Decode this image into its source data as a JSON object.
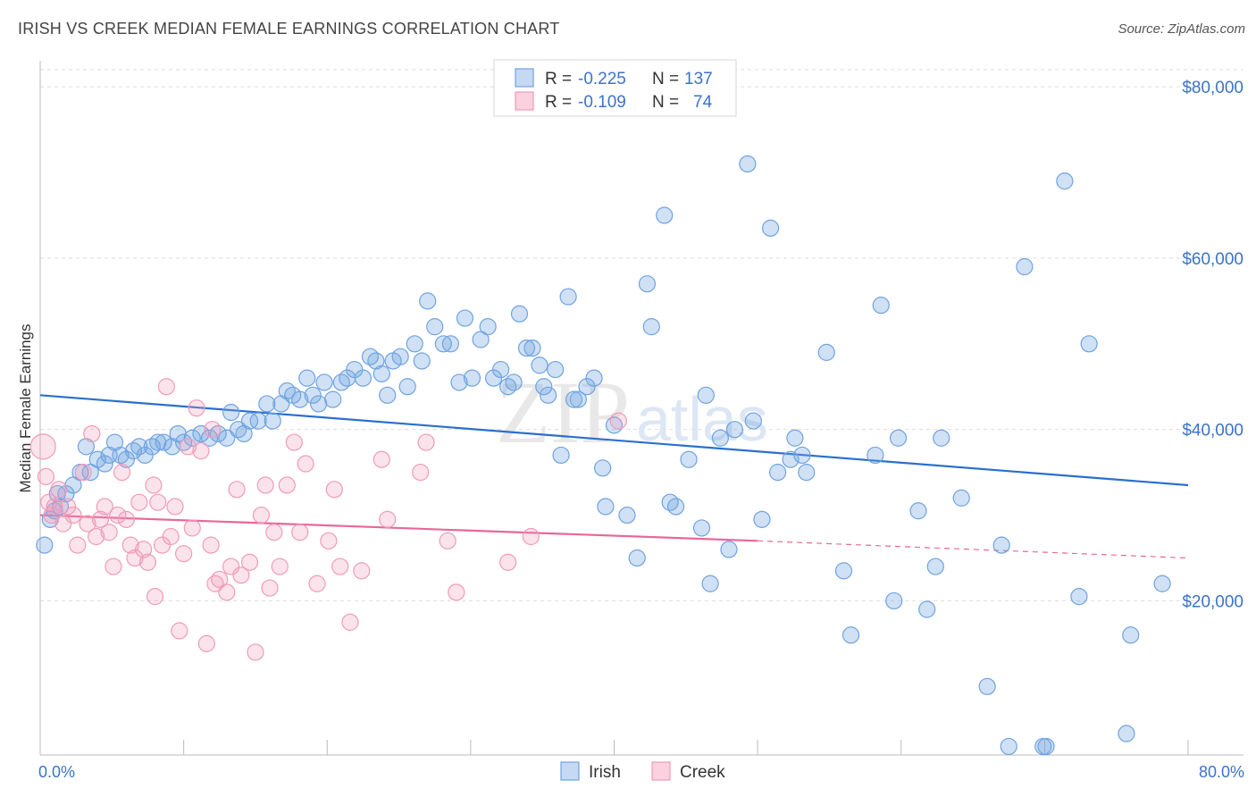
{
  "title": "IRISH VS CREEK MEDIAN FEMALE EARNINGS CORRELATION CHART",
  "source": "Source: ZipAtlas.com",
  "watermark": {
    "zip": "ZIP",
    "atlas": "atlas"
  },
  "colors": {
    "irish": "#6fa3e0",
    "irish_line": "#2a6fcf",
    "creek": "#f09bb8",
    "creek_line": "#e8679a",
    "axis_text": "#3b73c9",
    "grid": "#dddddd"
  },
  "legend": {
    "rows": [
      {
        "r_label": "R =",
        "r_value": "-0.225",
        "n_label": "N =",
        "n_value": "137"
      },
      {
        "r_label": "R =",
        "r_value": "-0.109",
        "n_label": "N =",
        "n_value": "74"
      }
    ]
  },
  "chart_data": {
    "type": "scatter",
    "title": "IRISH VS CREEK MEDIAN FEMALE EARNINGS CORRELATION CHART",
    "xlabel": "",
    "ylabel": "Median Female Earnings",
    "xlim": [
      0,
      80
    ],
    "ylim": [
      2000,
      82000
    ],
    "x_tick_labels": [
      "0.0%",
      "80.0%"
    ],
    "y_ticks": [
      20000,
      40000,
      60000,
      80000
    ],
    "y_tick_labels": [
      "$20,000",
      "$40,000",
      "$60,000",
      "$80,000"
    ],
    "grid": true,
    "legend_position": "top-center",
    "series": [
      {
        "name": "Irish",
        "color": "#6fa3e0",
        "trend": {
          "x": [
            0,
            80
          ],
          "y": [
            44000,
            33500
          ]
        },
        "points": [
          [
            0.3,
            26500
          ],
          [
            0.7,
            29500
          ],
          [
            1.0,
            30500
          ],
          [
            1.2,
            32500
          ],
          [
            1.4,
            31000
          ],
          [
            1.8,
            32500
          ],
          [
            2.3,
            33500
          ],
          [
            2.8,
            35000
          ],
          [
            3.2,
            38000
          ],
          [
            3.5,
            35000
          ],
          [
            4.0,
            36500
          ],
          [
            4.5,
            36000
          ],
          [
            4.8,
            37000
          ],
          [
            5.2,
            38500
          ],
          [
            5.6,
            37000
          ],
          [
            6.0,
            36500
          ],
          [
            6.5,
            37500
          ],
          [
            6.9,
            38000
          ],
          [
            7.3,
            37000
          ],
          [
            7.8,
            38000
          ],
          [
            8.2,
            38500
          ],
          [
            8.6,
            38500
          ],
          [
            9.2,
            38000
          ],
          [
            9.6,
            39500
          ],
          [
            10.0,
            38500
          ],
          [
            10.6,
            39000
          ],
          [
            11.2,
            39500
          ],
          [
            11.8,
            39000
          ],
          [
            12.4,
            39500
          ],
          [
            13.0,
            39000
          ],
          [
            13.3,
            42000
          ],
          [
            13.8,
            40000
          ],
          [
            14.2,
            39500
          ],
          [
            14.6,
            41000
          ],
          [
            15.2,
            41000
          ],
          [
            15.8,
            43000
          ],
          [
            16.2,
            41000
          ],
          [
            16.8,
            43000
          ],
          [
            17.2,
            44500
          ],
          [
            17.6,
            44000
          ],
          [
            18.1,
            43500
          ],
          [
            18.6,
            46000
          ],
          [
            19.0,
            44000
          ],
          [
            19.4,
            43000
          ],
          [
            19.8,
            45500
          ],
          [
            20.4,
            43500
          ],
          [
            21.0,
            45500
          ],
          [
            21.4,
            46000
          ],
          [
            21.9,
            47000
          ],
          [
            22.5,
            46000
          ],
          [
            23.0,
            48500
          ],
          [
            23.4,
            48000
          ],
          [
            23.8,
            46500
          ],
          [
            24.2,
            44000
          ],
          [
            24.6,
            48000
          ],
          [
            25.1,
            48500
          ],
          [
            25.6,
            45000
          ],
          [
            26.1,
            50000
          ],
          [
            26.6,
            48000
          ],
          [
            27.0,
            55000
          ],
          [
            27.5,
            52000
          ],
          [
            28.1,
            50000
          ],
          [
            28.6,
            50000
          ],
          [
            29.2,
            45500
          ],
          [
            29.6,
            53000
          ],
          [
            30.1,
            46000
          ],
          [
            30.7,
            50500
          ],
          [
            31.2,
            52000
          ],
          [
            31.6,
            46000
          ],
          [
            32.1,
            47000
          ],
          [
            32.6,
            45000
          ],
          [
            33.0,
            45500
          ],
          [
            33.4,
            53500
          ],
          [
            33.9,
            49500
          ],
          [
            34.3,
            49500
          ],
          [
            34.8,
            47500
          ],
          [
            35.1,
            45000
          ],
          [
            35.4,
            44000
          ],
          [
            35.9,
            47000
          ],
          [
            36.3,
            37000
          ],
          [
            36.8,
            55500
          ],
          [
            37.2,
            43500
          ],
          [
            37.5,
            43500
          ],
          [
            38.1,
            45000
          ],
          [
            38.6,
            46000
          ],
          [
            39.2,
            35500
          ],
          [
            39.4,
            31000
          ],
          [
            40.0,
            40500
          ],
          [
            40.9,
            30000
          ],
          [
            41.6,
            25000
          ],
          [
            42.3,
            57000
          ],
          [
            42.6,
            52000
          ],
          [
            43.5,
            65000
          ],
          [
            43.9,
            31500
          ],
          [
            44.3,
            31000
          ],
          [
            45.2,
            36500
          ],
          [
            46.1,
            28500
          ],
          [
            46.4,
            44000
          ],
          [
            46.7,
            22000
          ],
          [
            47.4,
            39000
          ],
          [
            48.0,
            26000
          ],
          [
            48.4,
            40000
          ],
          [
            49.3,
            71000
          ],
          [
            49.7,
            41000
          ],
          [
            50.3,
            29500
          ],
          [
            50.9,
            63500
          ],
          [
            51.4,
            35000
          ],
          [
            52.3,
            36500
          ],
          [
            52.6,
            39000
          ],
          [
            53.1,
            37000
          ],
          [
            53.4,
            35000
          ],
          [
            54.8,
            49000
          ],
          [
            56.0,
            23500
          ],
          [
            56.5,
            16000
          ],
          [
            58.2,
            37000
          ],
          [
            58.6,
            54500
          ],
          [
            59.5,
            20000
          ],
          [
            59.8,
            39000
          ],
          [
            61.2,
            30500
          ],
          [
            61.8,
            19000
          ],
          [
            62.4,
            24000
          ],
          [
            62.8,
            39000
          ],
          [
            64.2,
            32000
          ],
          [
            66.0,
            10000
          ],
          [
            67.0,
            26500
          ],
          [
            67.5,
            3000
          ],
          [
            68.6,
            59000
          ],
          [
            69.9,
            3000
          ],
          [
            70.1,
            3000
          ],
          [
            71.4,
            69000
          ],
          [
            72.4,
            20500
          ],
          [
            73.1,
            50000
          ],
          [
            75.7,
            4500
          ],
          [
            76.0,
            16000
          ],
          [
            78.2,
            22000
          ]
        ]
      },
      {
        "name": "Creek",
        "color": "#f09bb8",
        "trend": {
          "x": [
            0,
            50
          ],
          "y": [
            30000,
            27000
          ]
        },
        "trend_dashed": {
          "x": [
            50,
            80
          ],
          "y": [
            27000,
            25000
          ]
        },
        "points": [
          [
            0.2,
            38000
          ],
          [
            0.4,
            34500
          ],
          [
            0.6,
            31500
          ],
          [
            0.8,
            30000
          ],
          [
            1.0,
            31000
          ],
          [
            1.3,
            33000
          ],
          [
            1.6,
            29000
          ],
          [
            1.9,
            31000
          ],
          [
            2.3,
            30000
          ],
          [
            2.6,
            26500
          ],
          [
            3.0,
            35000
          ],
          [
            3.3,
            29000
          ],
          [
            3.6,
            39500
          ],
          [
            3.9,
            27500
          ],
          [
            4.2,
            29500
          ],
          [
            4.5,
            31000
          ],
          [
            4.8,
            28000
          ],
          [
            5.1,
            24000
          ],
          [
            5.4,
            30000
          ],
          [
            5.7,
            35000
          ],
          [
            6.0,
            29500
          ],
          [
            6.3,
            26500
          ],
          [
            6.6,
            25000
          ],
          [
            6.9,
            31500
          ],
          [
            7.2,
            26000
          ],
          [
            7.5,
            24500
          ],
          [
            7.9,
            33500
          ],
          [
            8.2,
            31500
          ],
          [
            8.5,
            26500
          ],
          [
            8.8,
            45000
          ],
          [
            9.1,
            27500
          ],
          [
            9.4,
            31000
          ],
          [
            9.7,
            16500
          ],
          [
            10.0,
            25500
          ],
          [
            10.3,
            38000
          ],
          [
            10.6,
            28500
          ],
          [
            10.9,
            42500
          ],
          [
            11.2,
            37500
          ],
          [
            11.6,
            15000
          ],
          [
            11.9,
            26500
          ],
          [
            12.2,
            22000
          ],
          [
            12.5,
            22500
          ],
          [
            13.0,
            21000
          ],
          [
            13.3,
            24000
          ],
          [
            13.7,
            33000
          ],
          [
            14.0,
            23000
          ],
          [
            14.6,
            24500
          ],
          [
            15.0,
            14000
          ],
          [
            15.4,
            30000
          ],
          [
            15.7,
            33500
          ],
          [
            16.0,
            21500
          ],
          [
            16.3,
            28000
          ],
          [
            16.7,
            24000
          ],
          [
            17.2,
            33500
          ],
          [
            17.7,
            38500
          ],
          [
            18.1,
            28000
          ],
          [
            18.5,
            36000
          ],
          [
            19.3,
            22000
          ],
          [
            20.1,
            27000
          ],
          [
            20.9,
            24000
          ],
          [
            21.6,
            17500
          ],
          [
            22.4,
            23500
          ],
          [
            23.8,
            36500
          ],
          [
            24.2,
            29500
          ],
          [
            26.5,
            35000
          ],
          [
            26.9,
            38500
          ],
          [
            28.4,
            27000
          ],
          [
            29.0,
            21000
          ],
          [
            32.6,
            24500
          ],
          [
            34.2,
            27500
          ],
          [
            40.3,
            41000
          ],
          [
            12.0,
            40000
          ],
          [
            20.5,
            33000
          ],
          [
            8.0,
            20500
          ]
        ]
      }
    ]
  },
  "bottom_legend": [
    {
      "label": "Irish"
    },
    {
      "label": "Creek"
    }
  ]
}
